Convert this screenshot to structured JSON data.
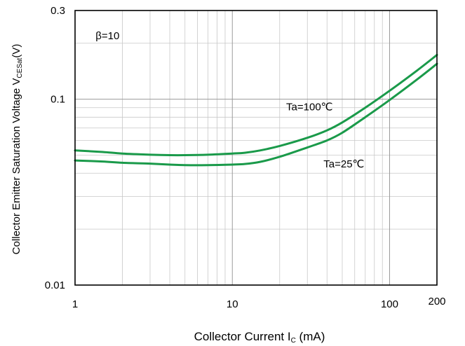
{
  "chart_data": {
    "type": "line",
    "xscale": "log",
    "yscale": "log",
    "xlim": [
      1,
      200
    ],
    "ylim": [
      0.01,
      0.3
    ],
    "grid": true,
    "xlabel": {
      "main": "Collector Current I",
      "sub": "C",
      "unit": " (mA)"
    },
    "ylabel": {
      "main": "Collector Emitter Saturation Voltage V",
      "sub": "CESat",
      "unit": "(V)"
    },
    "x_ticks": [
      {
        "value": 1,
        "label": "1"
      },
      {
        "value": 10,
        "label": "10"
      },
      {
        "value": 100,
        "label": "100"
      },
      {
        "value": 200,
        "label": "200"
      }
    ],
    "y_ticks": [
      {
        "value": 0.01,
        "label": "0.01"
      },
      {
        "value": 0.1,
        "label": "0.1"
      },
      {
        "value": 0.3,
        "label": "0.3"
      }
    ],
    "annotations": [
      {
        "text": "β=10",
        "x": 1.35,
        "y": 0.21
      },
      {
        "text": "Ta=100℃",
        "x": 22,
        "y": 0.087
      },
      {
        "text": "Ta=25℃",
        "x": 38,
        "y": 0.043
      }
    ],
    "series": [
      {
        "name": "Ta=100℃",
        "color": "#1a9a4a",
        "x": [
          1,
          1.5,
          2,
          3,
          4,
          5,
          7,
          10,
          12,
          15,
          20,
          30,
          40,
          50,
          70,
          100,
          150,
          200
        ],
        "y": [
          0.053,
          0.052,
          0.051,
          0.0503,
          0.05,
          0.05,
          0.0503,
          0.051,
          0.0515,
          0.053,
          0.056,
          0.062,
          0.068,
          0.075,
          0.09,
          0.111,
          0.143,
          0.173
        ]
      },
      {
        "name": "Ta=25℃",
        "color": "#1a9a4a",
        "x": [
          1,
          1.5,
          2,
          3,
          4,
          5,
          7,
          10,
          12,
          15,
          20,
          30,
          40,
          50,
          70,
          100,
          150,
          200
        ],
        "y": [
          0.0468,
          0.0462,
          0.0455,
          0.045,
          0.0445,
          0.0442,
          0.0442,
          0.0445,
          0.0448,
          0.046,
          0.049,
          0.055,
          0.06,
          0.066,
          0.08,
          0.099,
          0.128,
          0.155
        ]
      }
    ]
  }
}
